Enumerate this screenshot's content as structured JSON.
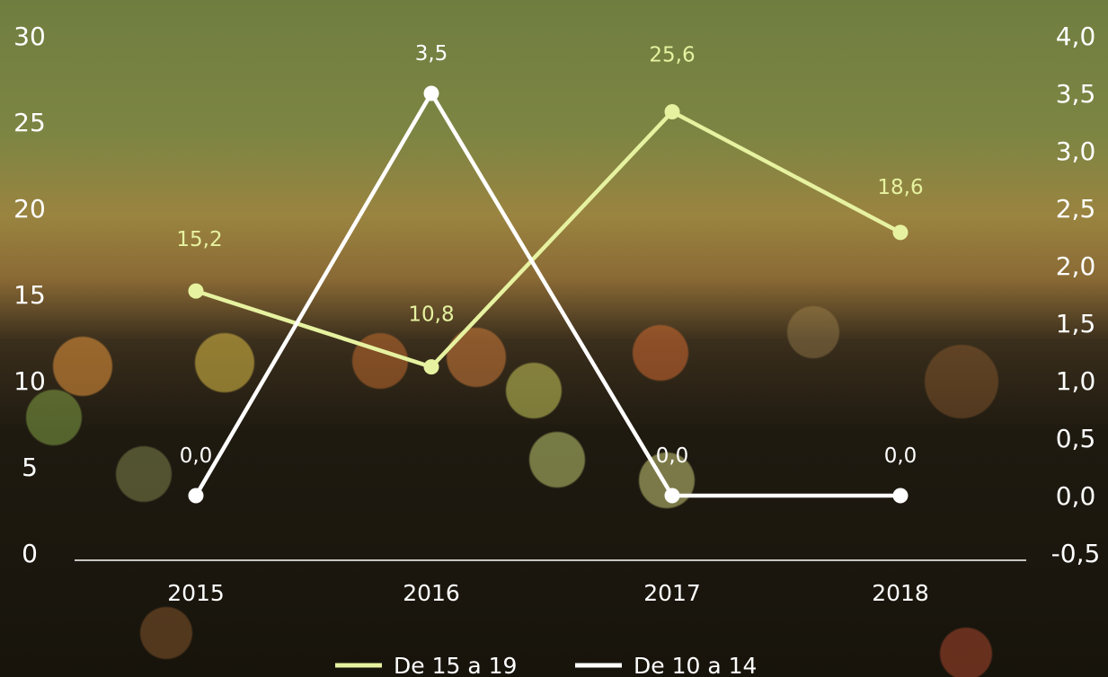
{
  "chart_data": {
    "type": "line",
    "categories": [
      "2015",
      "2016",
      "2017",
      "2018"
    ],
    "series": [
      {
        "name": "De 15 a 19",
        "axis": "left",
        "values": [
          15.2,
          10.8,
          25.6,
          18.6
        ],
        "labels": [
          "15,2",
          "10,8",
          "25,6",
          "18,6"
        ],
        "color": "#e6f2a0"
      },
      {
        "name": "De 10 a 14",
        "axis": "right",
        "values": [
          0.0,
          3.5,
          0.0,
          0.0
        ],
        "labels": [
          "0,0",
          "3,5",
          "0,0",
          "0,0"
        ],
        "color": "#ffffff"
      }
    ],
    "y_left": {
      "min": 0,
      "max": 30,
      "ticks": [
        "0",
        "5",
        "10",
        "15",
        "20",
        "25",
        "30"
      ]
    },
    "y_right": {
      "min": -0.5,
      "max": 4.0,
      "ticks": [
        "-0,5",
        "0,0",
        "0,5",
        "1,0",
        "1,5",
        "2,0",
        "2,5",
        "3,0",
        "3,5",
        "4,0"
      ]
    },
    "grid": false,
    "legend_position": "bottom-center"
  }
}
